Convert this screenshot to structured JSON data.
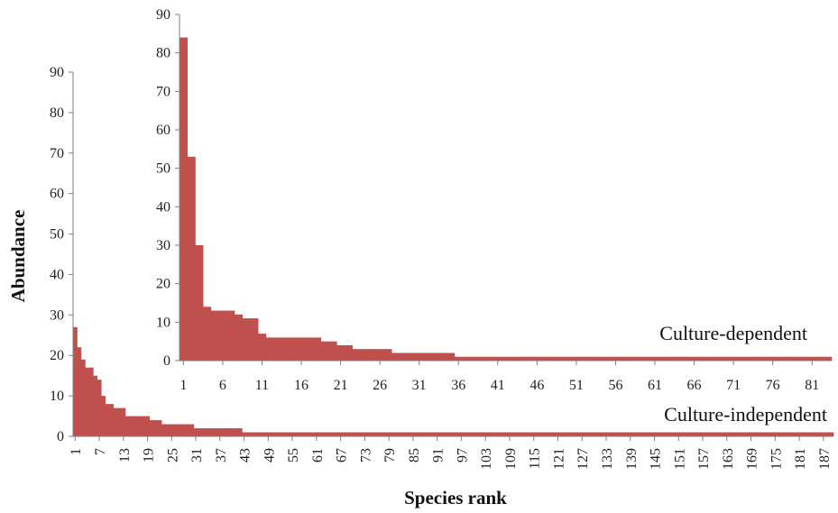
{
  "chart_data": [
    {
      "type": "bar",
      "name": "culture-independent",
      "series_label": "Culture-independent",
      "xlabel": "Species rank",
      "ylabel": "Abundance",
      "ylim": [
        0,
        90
      ],
      "yticks": [
        0,
        10,
        20,
        30,
        40,
        50,
        60,
        70,
        80,
        90
      ],
      "xlim": [
        1,
        189
      ],
      "xticks": [
        1,
        7,
        13,
        19,
        25,
        31,
        37,
        43,
        49,
        55,
        61,
        67,
        73,
        79,
        85,
        91,
        97,
        103,
        109,
        115,
        121,
        127,
        133,
        139,
        145,
        151,
        157,
        163,
        169,
        175,
        181,
        187
      ],
      "tick_labels_rotated": true,
      "color": "#C0504D",
      "x": [
        1,
        2,
        3,
        4,
        5,
        6,
        7,
        8,
        9,
        10,
        11,
        12,
        13,
        14,
        15,
        16,
        17,
        18,
        19,
        20,
        21,
        22,
        23,
        24,
        25,
        26,
        27,
        28,
        29,
        30,
        31,
        32,
        33,
        34,
        35,
        36,
        37,
        38,
        39,
        40,
        41,
        42,
        43,
        44,
        45,
        46,
        47,
        48,
        49,
        50,
        51,
        52,
        53,
        54,
        55,
        56,
        57,
        58,
        59,
        60,
        61,
        62,
        63,
        64,
        65,
        66,
        67,
        68,
        69,
        70,
        71,
        72,
        73,
        74,
        75,
        76,
        77,
        78,
        79,
        80,
        81,
        82,
        83,
        84,
        85,
        86,
        87,
        88,
        89,
        90,
        91,
        92,
        93,
        94,
        95,
        96,
        97,
        98,
        99,
        100,
        101,
        102,
        103,
        104,
        105,
        106,
        107,
        108,
        109,
        110,
        111,
        112,
        113,
        114,
        115,
        116,
        117,
        118,
        119,
        120,
        121,
        122,
        123,
        124,
        125,
        126,
        127,
        128,
        129,
        130,
        131,
        132,
        133,
        134,
        135,
        136,
        137,
        138,
        139,
        140,
        141,
        142,
        143,
        144,
        145,
        146,
        147,
        148,
        149,
        150,
        151,
        152,
        153,
        154,
        155,
        156,
        157,
        158,
        159,
        160,
        161,
        162,
        163,
        164,
        165,
        166,
        167,
        168,
        169,
        170,
        171,
        172,
        173,
        174,
        175,
        176,
        177,
        178,
        179,
        180,
        181,
        182,
        183,
        184,
        185,
        186,
        187,
        188,
        189
      ],
      "values": [
        27,
        22,
        19,
        17,
        17,
        15,
        14,
        10,
        8,
        8,
        7,
        7,
        7,
        5,
        5,
        5,
        5,
        5,
        5,
        4,
        4,
        4,
        3,
        3,
        3,
        3,
        3,
        3,
        3,
        3,
        2,
        2,
        2,
        2,
        2,
        2,
        2,
        2,
        2,
        2,
        2,
        2,
        1,
        1,
        1,
        1,
        1,
        1,
        1,
        1,
        1,
        1,
        1,
        1,
        1,
        1,
        1,
        1,
        1,
        1,
        1,
        1,
        1,
        1,
        1,
        1,
        1,
        1,
        1,
        1,
        1,
        1,
        1,
        1,
        1,
        1,
        1,
        1,
        1,
        1,
        1,
        1,
        1,
        1,
        1,
        1,
        1,
        1,
        1,
        1,
        1,
        1,
        1,
        1,
        1,
        1,
        1,
        1,
        1,
        1,
        1,
        1,
        1,
        1,
        1,
        1,
        1,
        1,
        1,
        1,
        1,
        1,
        1,
        1,
        1,
        1,
        1,
        1,
        1,
        1,
        1,
        1,
        1,
        1,
        1,
        1,
        1,
        1,
        1,
        1,
        1,
        1,
        1,
        1,
        1,
        1,
        1,
        1,
        1,
        1,
        1,
        1,
        1,
        1,
        1,
        1,
        1,
        1,
        1,
        1,
        1,
        1,
        1,
        1,
        1,
        1,
        1,
        1,
        1,
        1,
        1,
        1,
        1,
        1,
        1,
        1,
        1,
        1,
        1,
        1,
        1,
        1,
        1,
        1,
        1,
        1,
        1,
        1,
        1,
        1,
        1,
        1,
        1,
        1,
        1,
        1,
        1,
        1,
        1
      ]
    },
    {
      "type": "bar",
      "name": "culture-dependent",
      "series_label": "Culture-dependent",
      "ylim": [
        0,
        90
      ],
      "yticks": [
        0,
        10,
        20,
        30,
        40,
        50,
        60,
        70,
        80,
        90
      ],
      "xlim": [
        1,
        83
      ],
      "xticks": [
        1,
        6,
        11,
        16,
        21,
        26,
        31,
        36,
        41,
        46,
        51,
        56,
        61,
        66,
        71,
        76,
        81
      ],
      "color": "#C0504D",
      "x": [
        1,
        2,
        3,
        4,
        5,
        6,
        7,
        8,
        9,
        10,
        11,
        12,
        13,
        14,
        15,
        16,
        17,
        18,
        19,
        20,
        21,
        22,
        23,
        24,
        25,
        26,
        27,
        28,
        29,
        30,
        31,
        32,
        33,
        34,
        35,
        36,
        37,
        38,
        39,
        40,
        41,
        42,
        43,
        44,
        45,
        46,
        47,
        48,
        49,
        50,
        51,
        52,
        53,
        54,
        55,
        56,
        57,
        58,
        59,
        60,
        61,
        62,
        63,
        64,
        65,
        66,
        67,
        68,
        69,
        70,
        71,
        72,
        73,
        74,
        75,
        76,
        77,
        78,
        79,
        80,
        81,
        82,
        83
      ],
      "values": [
        84,
        53,
        30,
        14,
        13,
        13,
        13,
        12,
        11,
        11,
        7,
        6,
        6,
        6,
        6,
        6,
        6,
        6,
        5,
        5,
        4,
        4,
        3,
        3,
        3,
        3,
        3,
        2,
        2,
        2,
        2,
        2,
        2,
        2,
        2,
        1,
        1,
        1,
        1,
        1,
        1,
        1,
        1,
        1,
        1,
        1,
        1,
        1,
        1,
        1,
        1,
        1,
        1,
        1,
        1,
        1,
        1,
        1,
        1,
        1,
        1,
        1,
        1,
        1,
        1,
        1,
        1,
        1,
        1,
        1,
        1,
        1,
        1,
        1,
        1,
        1,
        1,
        1,
        1,
        1,
        1,
        1,
        1
      ]
    }
  ]
}
